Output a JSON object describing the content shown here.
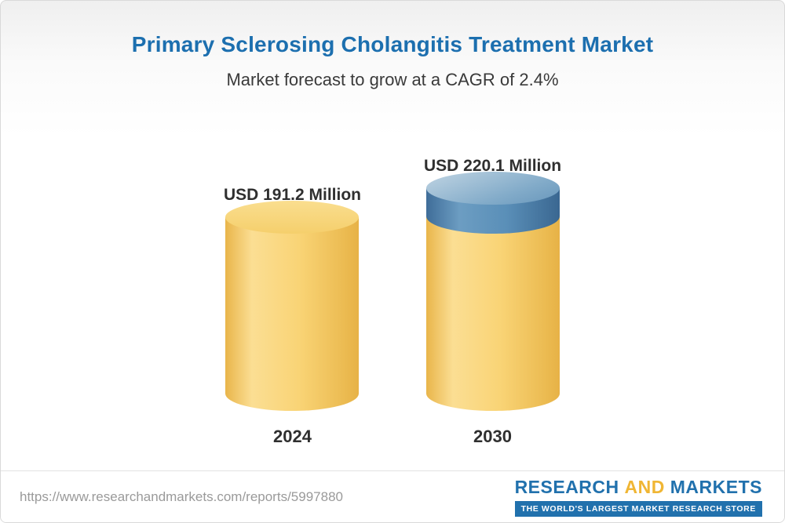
{
  "title": "Primary Sclerosing Cholangitis Treatment Market",
  "subtitle": "Market forecast to grow at a CAGR of 2.4%",
  "chart_data": {
    "type": "bar",
    "categories": [
      "2024",
      "2030"
    ],
    "values": [
      191.2,
      220.1
    ],
    "value_labels": [
      "USD 191.2 Million",
      "USD 220.1 Million"
    ],
    "unit": "USD Million",
    "cagr": "2.4%",
    "title": "Primary Sclerosing Cholangitis Treatment Market",
    "subtitle": "Market forecast to grow at a CAGR of 2.4%",
    "legend": "none",
    "grid": false,
    "colors": {
      "bar_base": "#F6CF6B",
      "growth_cap": "#5A8FB8",
      "title_text": "#1C6FAF"
    }
  },
  "footer": {
    "url": "https://www.researchandmarkets.com/reports/5997880",
    "logo": {
      "research": "RESEARCH",
      "and_word": "AND",
      "markets": "MARKETS",
      "tagline": "THE WORLD'S LARGEST MARKET RESEARCH STORE"
    }
  }
}
